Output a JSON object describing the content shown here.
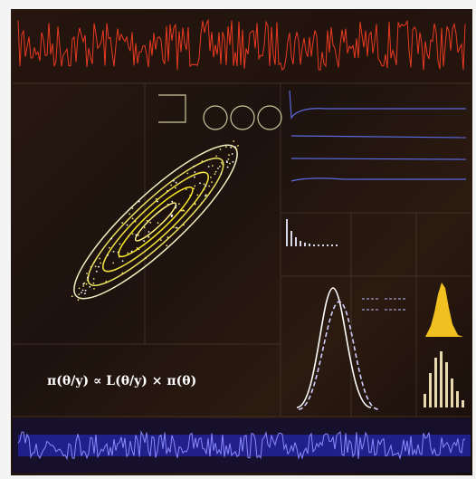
{
  "formula": "π(θ/y) ∝ L(θ/y) × π(θ)"
}
